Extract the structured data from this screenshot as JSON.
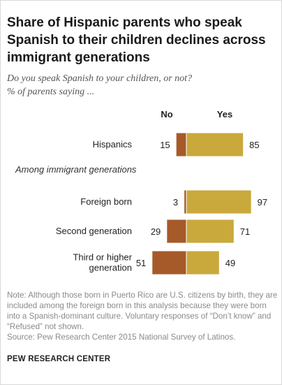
{
  "title": "Share of Hispanic parents who speak Spanish to their children declines across immigrant generations",
  "subtitle_line1": "Do you speak Spanish to your children, or not?",
  "subtitle_line2": "% of parents saying ...",
  "colors": {
    "no": "#a65a2a",
    "yes": "#c9a93c",
    "divider": "#ffffff"
  },
  "chart_data": {
    "type": "bar",
    "orientation": "horizontal-diverging",
    "legend": [
      "No",
      "Yes"
    ],
    "categories": [
      "Hispanics",
      "Foreign born",
      "Second generation",
      "Third or higher generation"
    ],
    "category_lines": [
      [
        "Hispanics"
      ],
      [
        "Foreign born"
      ],
      [
        "Second generation"
      ],
      [
        "Third or higher",
        "generation"
      ]
    ],
    "section_label": "Among immigrant generations",
    "series": [
      {
        "name": "No",
        "values": [
          15,
          3,
          29,
          51
        ]
      },
      {
        "name": "Yes",
        "values": [
          85,
          97,
          71,
          49
        ]
      }
    ],
    "xlim": [
      0,
      100
    ]
  },
  "note": "Note: Although those born in Puerto Rico are U.S. citizens by birth, they are included among the foreign born in this analysis because they were born into a Spanish-dominant culture. Voluntary responses of “Don’t know” and “Refused” not shown.",
  "source": "Source: Pew Research Center 2015 National Survey of Latinos.",
  "brand": "PEW RESEARCH CENTER"
}
